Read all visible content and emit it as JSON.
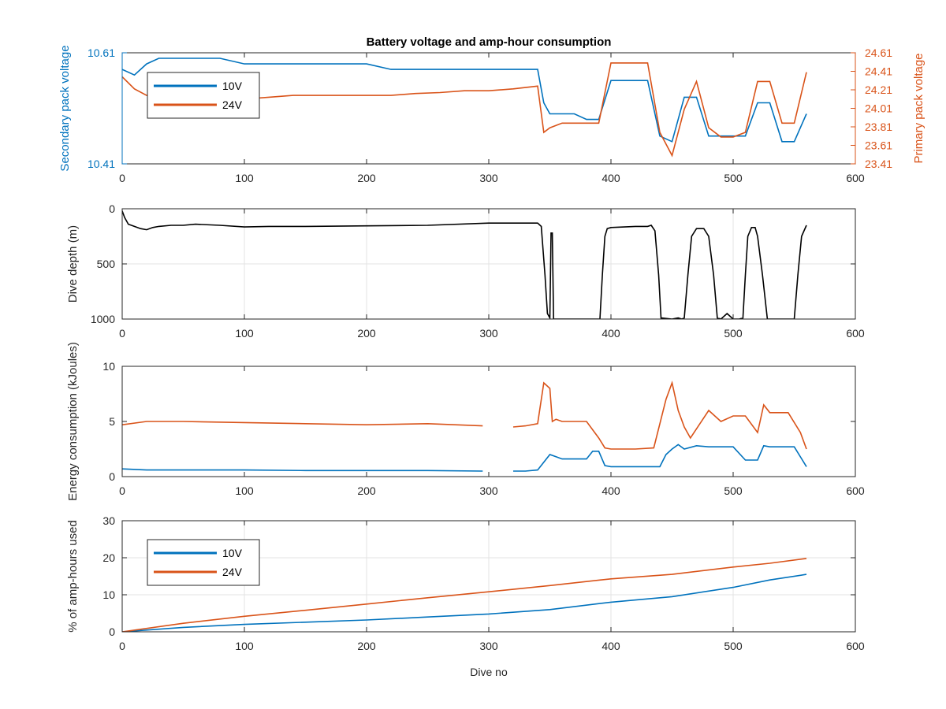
{
  "figure": {
    "title": "Battery voltage and amp-hour consumption",
    "shared_xlabel": "Dive no"
  },
  "colors": {
    "blue": "#0072BD",
    "orange": "#D95319",
    "black": "#000000",
    "grid": "#e3e3e3",
    "axis": "#262626"
  },
  "chart_data": [
    {
      "type": "line",
      "title": "Battery voltage and amp-hour consumption",
      "xlabel": "",
      "ylabel": "Secondary pack voltage",
      "ylabel_right": "Primary pack voltage",
      "xlim": [
        0,
        600
      ],
      "ylim": [
        10.41,
        10.61
      ],
      "ylim_right": [
        23.41,
        24.61
      ],
      "x_ticks": [
        "0",
        "100",
        "200",
        "300",
        "400",
        "500",
        "600"
      ],
      "y_ticks": [
        "10.41",
        "10.61"
      ],
      "y_ticks_right": [
        "23.41",
        "23.61",
        "23.81",
        "24.01",
        "24.21",
        "24.41",
        "24.61"
      ],
      "grid": false,
      "legend_position": "top-left",
      "series": [
        {
          "name": "10V",
          "axis": "left",
          "color": "#0072BD",
          "x": [
            0,
            10,
            20,
            30,
            40,
            60,
            80,
            100,
            120,
            140,
            160,
            180,
            200,
            220,
            240,
            260,
            280,
            300,
            320,
            340,
            345,
            350,
            360,
            370,
            380,
            390,
            400,
            410,
            420,
            430,
            440,
            450,
            460,
            470,
            480,
            490,
            500,
            510,
            520,
            530,
            540,
            550,
            560
          ],
          "y": [
            10.58,
            10.57,
            10.59,
            10.6,
            10.6,
            10.6,
            10.6,
            10.59,
            10.59,
            10.59,
            10.59,
            10.59,
            10.59,
            10.58,
            10.58,
            10.58,
            10.58,
            10.58,
            10.58,
            10.58,
            10.52,
            10.5,
            10.5,
            10.5,
            10.49,
            10.49,
            10.56,
            10.56,
            10.56,
            10.56,
            10.46,
            10.45,
            10.53,
            10.53,
            10.46,
            10.46,
            10.46,
            10.46,
            10.52,
            10.52,
            10.45,
            10.45,
            10.5
          ]
        },
        {
          "name": "24V",
          "axis": "right",
          "color": "#D95319",
          "x": [
            0,
            10,
            20,
            30,
            40,
            60,
            80,
            100,
            120,
            140,
            160,
            180,
            200,
            220,
            240,
            260,
            280,
            300,
            320,
            340,
            345,
            350,
            360,
            370,
            380,
            390,
            400,
            410,
            420,
            430,
            440,
            450,
            460,
            470,
            480,
            490,
            500,
            510,
            520,
            530,
            540,
            550,
            560
          ],
          "y": [
            24.35,
            24.22,
            24.15,
            24.14,
            24.15,
            24.12,
            24.11,
            24.11,
            24.13,
            24.15,
            24.15,
            24.15,
            24.15,
            24.15,
            24.17,
            24.18,
            24.2,
            24.2,
            24.22,
            24.25,
            23.75,
            23.8,
            23.85,
            23.85,
            23.85,
            23.85,
            24.5,
            24.5,
            24.5,
            24.5,
            23.75,
            23.5,
            24.0,
            24.3,
            23.8,
            23.7,
            23.7,
            23.75,
            24.3,
            24.3,
            23.85,
            23.85,
            24.4
          ]
        }
      ]
    },
    {
      "type": "line",
      "xlabel": "",
      "ylabel": "Dive depth (m)",
      "xlim": [
        0,
        600
      ],
      "ylim": [
        1000,
        0
      ],
      "x_ticks": [
        "0",
        "100",
        "200",
        "300",
        "400",
        "500",
        "600"
      ],
      "y_ticks": [
        "0",
        "500",
        "1000"
      ],
      "y_reversed": true,
      "grid": true,
      "series": [
        {
          "name": "",
          "color": "#000000",
          "x": [
            0,
            2,
            5,
            10,
            15,
            20,
            25,
            30,
            40,
            50,
            60,
            80,
            100,
            120,
            150,
            200,
            250,
            300,
            320,
            340,
            343,
            346,
            348,
            350,
            351,
            352,
            353,
            355,
            360,
            375,
            385,
            391,
            393,
            395,
            397,
            400,
            420,
            430,
            433,
            436,
            439,
            441,
            450,
            455,
            458,
            460,
            463,
            466,
            470,
            476,
            480,
            484,
            487,
            490,
            495,
            500,
            505,
            508,
            510,
            512,
            515,
            518,
            520,
            524,
            528,
            532,
            540,
            548,
            550,
            553,
            556,
            560
          ],
          "y": [
            20,
            80,
            140,
            160,
            180,
            190,
            170,
            160,
            150,
            150,
            140,
            150,
            165,
            160,
            160,
            155,
            150,
            130,
            130,
            130,
            160,
            600,
            950,
            990,
            220,
            220,
            1000,
            1000,
            1000,
            1000,
            1000,
            1000,
            600,
            250,
            180,
            170,
            160,
            160,
            150,
            200,
            600,
            990,
            1000,
            990,
            1000,
            990,
            600,
            250,
            180,
            180,
            250,
            600,
            990,
            1000,
            950,
            1000,
            1000,
            990,
            600,
            250,
            170,
            170,
            250,
            600,
            1000,
            1000,
            1000,
            1000,
            1000,
            600,
            250,
            150
          ]
        }
      ]
    },
    {
      "type": "line",
      "xlabel": "",
      "ylabel": "Energy consumption (kJoules)",
      "xlim": [
        0,
        600
      ],
      "ylim": [
        0,
        10
      ],
      "x_ticks": [
        "0",
        "100",
        "200",
        "300",
        "400",
        "500",
        "600"
      ],
      "y_ticks": [
        "0",
        "5",
        "10"
      ],
      "grid": false,
      "series": [
        {
          "name": "",
          "color": "#D95319",
          "x": [
            0,
            20,
            50,
            100,
            150,
            200,
            250,
            295,
            300,
            305,
            320,
            330,
            340,
            345,
            350,
            352,
            355,
            360,
            370,
            380,
            390,
            395,
            400,
            420,
            435,
            445,
            450,
            455,
            460,
            465,
            480,
            490,
            500,
            510,
            520,
            525,
            530,
            545,
            555,
            560
          ],
          "y": [
            4.7,
            5.0,
            5.0,
            4.9,
            4.8,
            4.7,
            4.8,
            4.6,
            null,
            null,
            4.5,
            4.6,
            4.8,
            8.5,
            8.0,
            5.0,
            5.2,
            5.0,
            5.0,
            5.0,
            3.5,
            2.6,
            2.5,
            2.5,
            2.6,
            7.0,
            8.5,
            6.0,
            4.5,
            3.5,
            6.0,
            5.0,
            5.5,
            5.5,
            4.0,
            6.5,
            5.8,
            5.8,
            4.0,
            2.5
          ]
        },
        {
          "name": "",
          "color": "#0072BD",
          "x": [
            0,
            20,
            50,
            100,
            150,
            200,
            250,
            295,
            300,
            305,
            320,
            330,
            340,
            350,
            355,
            360,
            380,
            385,
            390,
            395,
            400,
            440,
            445,
            450,
            455,
            460,
            470,
            480,
            490,
            500,
            510,
            520,
            525,
            530,
            550,
            560
          ],
          "y": [
            0.7,
            0.6,
            0.6,
            0.6,
            0.55,
            0.55,
            0.55,
            0.5,
            null,
            null,
            0.5,
            0.5,
            0.6,
            2.0,
            1.8,
            1.6,
            1.6,
            2.3,
            2.3,
            1.0,
            0.9,
            0.9,
            2.0,
            2.5,
            2.9,
            2.5,
            2.8,
            2.7,
            2.7,
            2.7,
            1.5,
            1.5,
            2.8,
            2.7,
            2.7,
            0.9
          ]
        }
      ]
    },
    {
      "type": "line",
      "xlabel": "Dive no",
      "ylabel": "% of amp-hours used",
      "xlim": [
        0,
        600
      ],
      "ylim": [
        0,
        30
      ],
      "x_ticks": [
        "0",
        "100",
        "200",
        "300",
        "400",
        "500",
        "600"
      ],
      "y_ticks": [
        "0",
        "10",
        "20",
        "30"
      ],
      "grid": true,
      "legend_position": "top-left",
      "series": [
        {
          "name": "10V",
          "color": "#0072BD",
          "x": [
            0,
            50,
            100,
            150,
            200,
            250,
            300,
            350,
            400,
            450,
            500,
            530,
            560
          ],
          "y": [
            0,
            1.2,
            2.0,
            2.6,
            3.2,
            4.0,
            4.8,
            6.0,
            8.0,
            9.5,
            12.0,
            14.0,
            15.5
          ]
        },
        {
          "name": "24V",
          "color": "#D95319",
          "x": [
            0,
            50,
            100,
            150,
            200,
            250,
            300,
            350,
            400,
            450,
            500,
            530,
            560
          ],
          "y": [
            0,
            2.3,
            4.2,
            5.8,
            7.5,
            9.2,
            10.8,
            12.5,
            14.3,
            15.5,
            17.5,
            18.5,
            19.8
          ]
        }
      ]
    }
  ]
}
